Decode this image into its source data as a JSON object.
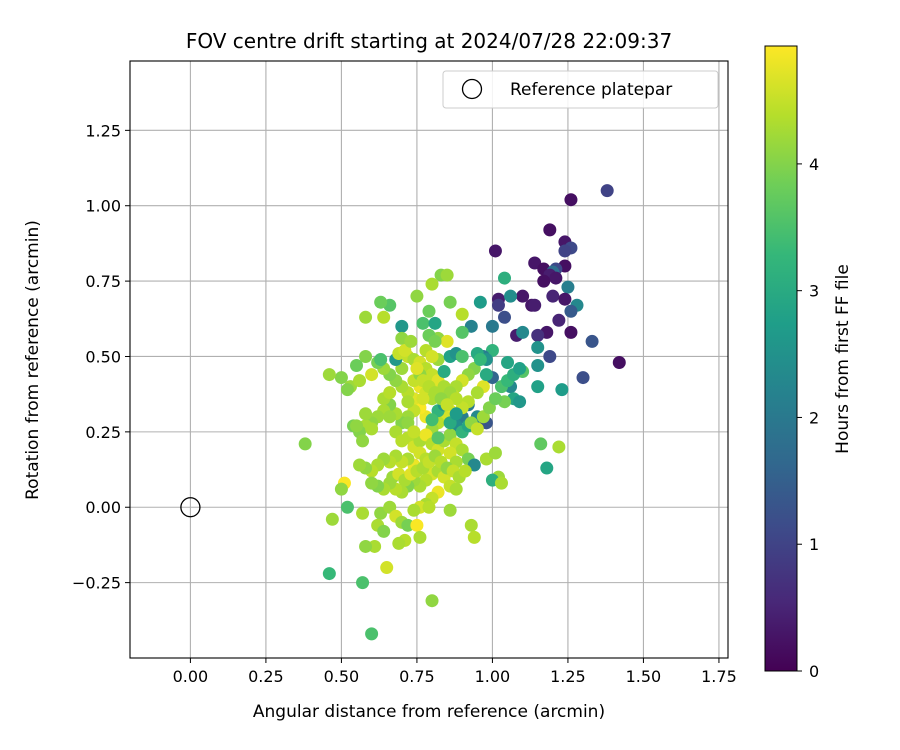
{
  "chart_data": {
    "type": "scatter",
    "title": "FOV centre drift starting at 2024/07/28 22:09:37",
    "xlabel": "Angular distance from reference (arcmin)",
    "ylabel": "Rotation from reference (arcmin)",
    "xlim": [
      -0.2,
      1.78
    ],
    "ylim": [
      -0.5,
      1.48
    ],
    "xticks": [
      "0.00",
      "0.25",
      "0.50",
      "0.75",
      "1.00",
      "1.25",
      "1.50",
      "1.75"
    ],
    "yticks": [
      "−0.25",
      "0.00",
      "0.25",
      "0.50",
      "0.75",
      "1.00",
      "1.25"
    ],
    "grid": true,
    "legend": {
      "position": "top-right",
      "entries": [
        "Reference platepar"
      ]
    },
    "colorbar": {
      "label": "Hours from first FF file",
      "range": [
        0,
        4.93
      ],
      "ticks": [
        "0",
        "1",
        "2",
        "3",
        "4"
      ],
      "colormap": "viridis"
    },
    "reference_point": {
      "x": 0.0,
      "y": 0.0
    },
    "points": [
      [
        1.01,
        0.85,
        0.3
      ],
      [
        1.26,
        1.02,
        0.2
      ],
      [
        1.38,
        1.05,
        1.0
      ],
      [
        1.19,
        0.92,
        0.2
      ],
      [
        1.24,
        0.88,
        0.3
      ],
      [
        1.26,
        0.86,
        1.1
      ],
      [
        1.24,
        0.85,
        1.0
      ],
      [
        1.24,
        0.8,
        0.2
      ],
      [
        1.14,
        0.81,
        0.3
      ],
      [
        1.17,
        0.79,
        0.2
      ],
      [
        1.21,
        0.79,
        1.1
      ],
      [
        1.2,
        0.78,
        1.8
      ],
      [
        1.19,
        0.77,
        0.4
      ],
      [
        1.21,
        0.76,
        0.3
      ],
      [
        1.17,
        0.75,
        0.2
      ],
      [
        1.25,
        0.73,
        2.1
      ],
      [
        1.1,
        0.7,
        0.3
      ],
      [
        1.2,
        0.7,
        0.5
      ],
      [
        1.24,
        0.69,
        0.3
      ],
      [
        1.13,
        0.67,
        0.3
      ],
      [
        1.14,
        0.67,
        0.4
      ],
      [
        1.28,
        0.67,
        2.3
      ],
      [
        1.26,
        0.65,
        1.4
      ],
      [
        1.22,
        0.62,
        0.5
      ],
      [
        1.26,
        0.58,
        0.2
      ],
      [
        1.18,
        0.58,
        0.3
      ],
      [
        1.15,
        0.57,
        0.7
      ],
      [
        1.33,
        0.55,
        1.3
      ],
      [
        1.19,
        0.5,
        1.1
      ],
      [
        1.42,
        0.48,
        0.2
      ],
      [
        1.3,
        0.43,
        1.2
      ],
      [
        1.08,
        0.57,
        0.4
      ],
      [
        1.1,
        0.58,
        2.3
      ],
      [
        1.02,
        0.69,
        0.4
      ],
      [
        1.02,
        0.67,
        0.9
      ],
      [
        1.04,
        0.63,
        1.2
      ],
      [
        1.06,
        0.7,
        2.4
      ],
      [
        1.04,
        0.76,
        3.1
      ],
      [
        0.96,
        0.68,
        2.7
      ],
      [
        1.0,
        0.6,
        2.0
      ],
      [
        1.15,
        0.53,
        2.5
      ],
      [
        1.0,
        0.52,
        3.2
      ],
      [
        0.97,
        0.5,
        2.1
      ],
      [
        1.05,
        0.48,
        2.9
      ],
      [
        1.15,
        0.47,
        2.5
      ],
      [
        1.1,
        0.45,
        3.6
      ],
      [
        1.0,
        0.43,
        1.6
      ],
      [
        1.06,
        0.4,
        2.3
      ],
      [
        1.15,
        0.4,
        2.8
      ],
      [
        1.23,
        0.39,
        2.7
      ],
      [
        1.07,
        0.36,
        2.9
      ],
      [
        1.09,
        0.35,
        2.6
      ],
      [
        1.04,
        0.35,
        3.9
      ],
      [
        1.16,
        0.21,
        3.7
      ],
      [
        1.22,
        0.2,
        4.3
      ],
      [
        1.18,
        0.13,
        2.9
      ],
      [
        0.95,
        0.3,
        2.3
      ],
      [
        0.98,
        0.28,
        1.3
      ],
      [
        0.92,
        0.34,
        2.0
      ],
      [
        0.9,
        0.3,
        2.1
      ],
      [
        0.88,
        0.27,
        2.4
      ],
      [
        0.93,
        0.6,
        2.2
      ],
      [
        0.9,
        0.58,
        3.6
      ],
      [
        0.9,
        0.64,
        4.4
      ],
      [
        0.86,
        0.68,
        3.9
      ],
      [
        0.83,
        0.77,
        4.0
      ],
      [
        0.85,
        0.77,
        4.2
      ],
      [
        0.8,
        0.74,
        4.3
      ],
      [
        0.79,
        0.65,
        3.8
      ],
      [
        0.75,
        0.7,
        4.1
      ],
      [
        0.77,
        0.61,
        3.5
      ],
      [
        0.81,
        0.61,
        2.9
      ],
      [
        0.7,
        0.6,
        2.6
      ],
      [
        0.66,
        0.67,
        3.6
      ],
      [
        0.63,
        0.68,
        3.8
      ],
      [
        0.58,
        0.63,
        4.2
      ],
      [
        0.64,
        0.63,
        4.4
      ],
      [
        0.82,
        0.56,
        4.1
      ],
      [
        0.85,
        0.55,
        4.7
      ],
      [
        0.82,
        0.49,
        4.2
      ],
      [
        0.86,
        0.5,
        2.8
      ],
      [
        0.88,
        0.51,
        2.5
      ],
      [
        0.9,
        0.5,
        3.5
      ],
      [
        0.95,
        0.51,
        3.0
      ],
      [
        0.98,
        0.49,
        2.5
      ],
      [
        0.94,
        0.46,
        4.0
      ],
      [
        0.92,
        0.44,
        4.1
      ],
      [
        0.9,
        0.42,
        4.6
      ],
      [
        0.88,
        0.4,
        4.3
      ],
      [
        0.87,
        0.37,
        4.5
      ],
      [
        0.97,
        0.4,
        4.7
      ],
      [
        0.95,
        0.38,
        4.3
      ],
      [
        0.92,
        0.35,
        4.4
      ],
      [
        0.9,
        0.33,
        4.5
      ],
      [
        0.86,
        0.32,
        4.7
      ],
      [
        0.84,
        0.3,
        4.6
      ],
      [
        0.82,
        0.28,
        4.4
      ],
      [
        0.8,
        0.26,
        4.2
      ],
      [
        0.78,
        0.3,
        4.8
      ],
      [
        0.76,
        0.33,
        4.9
      ],
      [
        0.74,
        0.36,
        4.7
      ],
      [
        0.72,
        0.38,
        4.4
      ],
      [
        0.7,
        0.4,
        4.3
      ],
      [
        0.68,
        0.42,
        4.1
      ],
      [
        0.66,
        0.44,
        4.0
      ],
      [
        0.64,
        0.46,
        4.2
      ],
      [
        0.62,
        0.48,
        3.9
      ],
      [
        0.6,
        0.44,
        4.6
      ],
      [
        0.58,
        0.5,
        4.0
      ],
      [
        0.55,
        0.47,
        3.8
      ],
      [
        0.53,
        0.4,
        4.2
      ],
      [
        0.52,
        0.39,
        4.0
      ],
      [
        0.5,
        0.43,
        4.0
      ],
      [
        0.46,
        0.44,
        4.2
      ],
      [
        0.56,
        0.42,
        4.3
      ],
      [
        0.7,
        0.46,
        4.2
      ],
      [
        0.72,
        0.5,
        4.5
      ],
      [
        0.74,
        0.49,
        4.3
      ],
      [
        0.76,
        0.48,
        4.6
      ],
      [
        0.78,
        0.46,
        4.4
      ],
      [
        0.8,
        0.44,
        4.5
      ],
      [
        0.82,
        0.42,
        4.7
      ],
      [
        0.84,
        0.4,
        4.3
      ],
      [
        0.86,
        0.38,
        4.2
      ],
      [
        0.88,
        0.36,
        4.4
      ],
      [
        0.76,
        0.4,
        4.8
      ],
      [
        0.78,
        0.38,
        4.6
      ],
      [
        0.8,
        0.36,
        4.3
      ],
      [
        0.74,
        0.32,
        4.5
      ],
      [
        0.72,
        0.3,
        4.2
      ],
      [
        0.7,
        0.28,
        4.0
      ],
      [
        0.68,
        0.31,
        4.3
      ],
      [
        0.66,
        0.34,
        4.0
      ],
      [
        0.64,
        0.32,
        4.3
      ],
      [
        0.62,
        0.3,
        4.2
      ],
      [
        0.6,
        0.28,
        4.1
      ],
      [
        0.58,
        0.27,
        4.3
      ],
      [
        0.56,
        0.25,
        4.0
      ],
      [
        0.54,
        0.27,
        3.9
      ],
      [
        0.57,
        0.22,
        4.1
      ],
      [
        0.6,
        0.26,
        4.3
      ],
      [
        0.72,
        0.23,
        4.4
      ],
      [
        0.74,
        0.2,
        4.6
      ],
      [
        0.76,
        0.22,
        4.3
      ],
      [
        0.78,
        0.24,
        4.8
      ],
      [
        0.8,
        0.21,
        4.4
      ],
      [
        0.82,
        0.19,
        4.6
      ],
      [
        0.84,
        0.22,
        4.3
      ],
      [
        0.86,
        0.24,
        4.1
      ],
      [
        0.88,
        0.21,
        4.5
      ],
      [
        0.9,
        0.19,
        4.3
      ],
      [
        0.92,
        0.16,
        3.9
      ],
      [
        0.94,
        0.14,
        2.3
      ],
      [
        0.98,
        0.16,
        4.3
      ],
      [
        1.01,
        0.18,
        4.2
      ],
      [
        1.02,
        0.1,
        4.2
      ],
      [
        1.0,
        0.09,
        3.1
      ],
      [
        1.03,
        0.08,
        4.3
      ],
      [
        0.86,
        0.18,
        4.6
      ],
      [
        0.88,
        0.15,
        4.3
      ],
      [
        0.76,
        0.18,
        4.6
      ],
      [
        0.78,
        0.16,
        4.4
      ],
      [
        0.74,
        0.14,
        4.8
      ],
      [
        0.72,
        0.16,
        4.3
      ],
      [
        0.7,
        0.15,
        4.5
      ],
      [
        0.68,
        0.17,
        4.3
      ],
      [
        0.66,
        0.15,
        4.4
      ],
      [
        0.64,
        0.16,
        4.2
      ],
      [
        0.62,
        0.14,
        4.3
      ],
      [
        0.6,
        0.12,
        4.4
      ],
      [
        0.58,
        0.13,
        4.1
      ],
      [
        0.56,
        0.14,
        4.2
      ],
      [
        0.8,
        0.11,
        4.6
      ],
      [
        0.82,
        0.12,
        4.3
      ],
      [
        0.84,
        0.1,
        4.6
      ],
      [
        0.78,
        0.09,
        4.4
      ],
      [
        0.76,
        0.07,
        4.3
      ],
      [
        0.74,
        0.09,
        4.2
      ],
      [
        0.72,
        0.07,
        4.0
      ],
      [
        0.7,
        0.05,
        4.3
      ],
      [
        0.68,
        0.06,
        4.4
      ],
      [
        0.66,
        0.08,
        4.2
      ],
      [
        0.64,
        0.06,
        4.3
      ],
      [
        0.62,
        0.07,
        4.0
      ],
      [
        0.6,
        0.08,
        4.1
      ],
      [
        0.86,
        0.07,
        4.5
      ],
      [
        0.88,
        0.06,
        4.3
      ],
      [
        0.82,
        0.05,
        4.8
      ],
      [
        0.8,
        0.03,
        4.5
      ],
      [
        0.78,
        0.01,
        4.3
      ],
      [
        0.76,
        0.0,
        4.6
      ],
      [
        0.74,
        -0.01,
        4.3
      ],
      [
        0.86,
        -0.01,
        4.2
      ],
      [
        0.79,
        0.0,
        4.4
      ],
      [
        0.51,
        0.08,
        4.9
      ],
      [
        0.5,
        0.06,
        4.1
      ],
      [
        0.52,
        0.0,
        3.5
      ],
      [
        0.47,
        -0.04,
        4.2
      ],
      [
        0.57,
        -0.02,
        4.3
      ],
      [
        0.63,
        -0.02,
        4.1
      ],
      [
        0.66,
        0.0,
        4.2
      ],
      [
        0.68,
        -0.03,
        4.6
      ],
      [
        0.7,
        -0.05,
        4.2
      ],
      [
        0.72,
        -0.06,
        3.9
      ],
      [
        0.75,
        -0.06,
        4.9
      ],
      [
        0.62,
        -0.06,
        4.3
      ],
      [
        0.64,
        -0.08,
        4.0
      ],
      [
        0.71,
        -0.11,
        4.4
      ],
      [
        0.69,
        -0.12,
        4.3
      ],
      [
        0.76,
        -0.1,
        4.3
      ],
      [
        0.93,
        -0.06,
        4.3
      ],
      [
        0.94,
        -0.1,
        4.4
      ],
      [
        0.61,
        -0.13,
        4.3
      ],
      [
        0.58,
        -0.13,
        4.1
      ],
      [
        0.65,
        -0.2,
        4.6
      ],
      [
        0.57,
        -0.25,
        3.5
      ],
      [
        0.46,
        -0.22,
        3.3
      ],
      [
        0.8,
        -0.31,
        4.1
      ],
      [
        0.6,
        -0.42,
        3.5
      ],
      [
        0.38,
        0.21,
        4.0
      ],
      [
        0.55,
        0.27,
        4.1
      ],
      [
        0.58,
        0.31,
        4.2
      ],
      [
        0.64,
        0.36,
        4.3
      ],
      [
        0.66,
        0.38,
        4.4
      ],
      [
        0.68,
        0.49,
        2.6
      ],
      [
        0.63,
        0.49,
        3.5
      ],
      [
        0.72,
        0.35,
        4.3
      ],
      [
        0.74,
        0.42,
        4.5
      ],
      [
        0.76,
        0.44,
        4.1
      ],
      [
        0.84,
        0.45,
        3.0
      ],
      [
        0.78,
        0.52,
        4.4
      ],
      [
        0.8,
        0.5,
        4.6
      ],
      [
        0.82,
        0.32,
        3.2
      ],
      [
        0.84,
        0.34,
        2.6
      ],
      [
        0.86,
        0.28,
        3.0
      ],
      [
        0.88,
        0.31,
        2.7
      ],
      [
        0.9,
        0.25,
        3.2
      ],
      [
        0.92,
        0.27,
        2.9
      ],
      [
        0.8,
        0.29,
        3.4
      ],
      [
        0.82,
        0.23,
        3.6
      ],
      [
        0.96,
        0.49,
        3.3
      ],
      [
        0.98,
        0.44,
        3.0
      ],
      [
        0.79,
        0.57,
        3.8
      ],
      [
        0.81,
        0.55,
        3.9
      ],
      [
        0.7,
        0.56,
        4.1
      ],
      [
        0.69,
        0.51,
        4.5
      ],
      [
        0.71,
        0.52,
        4.6
      ],
      [
        0.73,
        0.55,
        4.2
      ],
      [
        0.75,
        0.46,
        4.7
      ],
      [
        0.77,
        0.42,
        4.5
      ],
      [
        0.77,
        0.36,
        4.6
      ],
      [
        0.79,
        0.4,
        4.4
      ],
      [
        0.81,
        0.38,
        4.3
      ],
      [
        0.83,
        0.36,
        4.1
      ],
      [
        0.85,
        0.34,
        4.5
      ],
      [
        0.66,
        0.3,
        4.2
      ],
      [
        0.68,
        0.25,
        4.3
      ],
      [
        0.7,
        0.22,
        4.4
      ],
      [
        0.72,
        0.28,
        4.1
      ],
      [
        0.74,
        0.25,
        4.5
      ],
      [
        0.67,
        0.1,
        4.2
      ],
      [
        0.69,
        0.11,
        4.6
      ],
      [
        0.71,
        0.09,
        4.3
      ],
      [
        0.73,
        0.11,
        4.7
      ],
      [
        0.75,
        0.12,
        4.4
      ],
      [
        0.77,
        0.13,
        4.3
      ],
      [
        0.79,
        0.15,
        4.5
      ],
      [
        0.81,
        0.17,
        4.2
      ],
      [
        0.83,
        0.15,
        4.4
      ],
      [
        0.85,
        0.13,
        4.1
      ],
      [
        0.87,
        0.12,
        4.5
      ],
      [
        0.89,
        0.1,
        4.3
      ],
      [
        0.91,
        0.12,
        4.4
      ],
      [
        0.93,
        0.28,
        4.1
      ],
      [
        0.95,
        0.26,
        4.5
      ],
      [
        0.97,
        0.3,
        4.2
      ],
      [
        0.99,
        0.33,
        4.0
      ],
      [
        1.01,
        0.36,
        3.8
      ],
      [
        1.03,
        0.4,
        3.5
      ],
      [
        1.05,
        0.42,
        3.3
      ],
      [
        1.07,
        0.44,
        3.1
      ],
      [
        1.09,
        0.46,
        2.8
      ]
    ]
  }
}
